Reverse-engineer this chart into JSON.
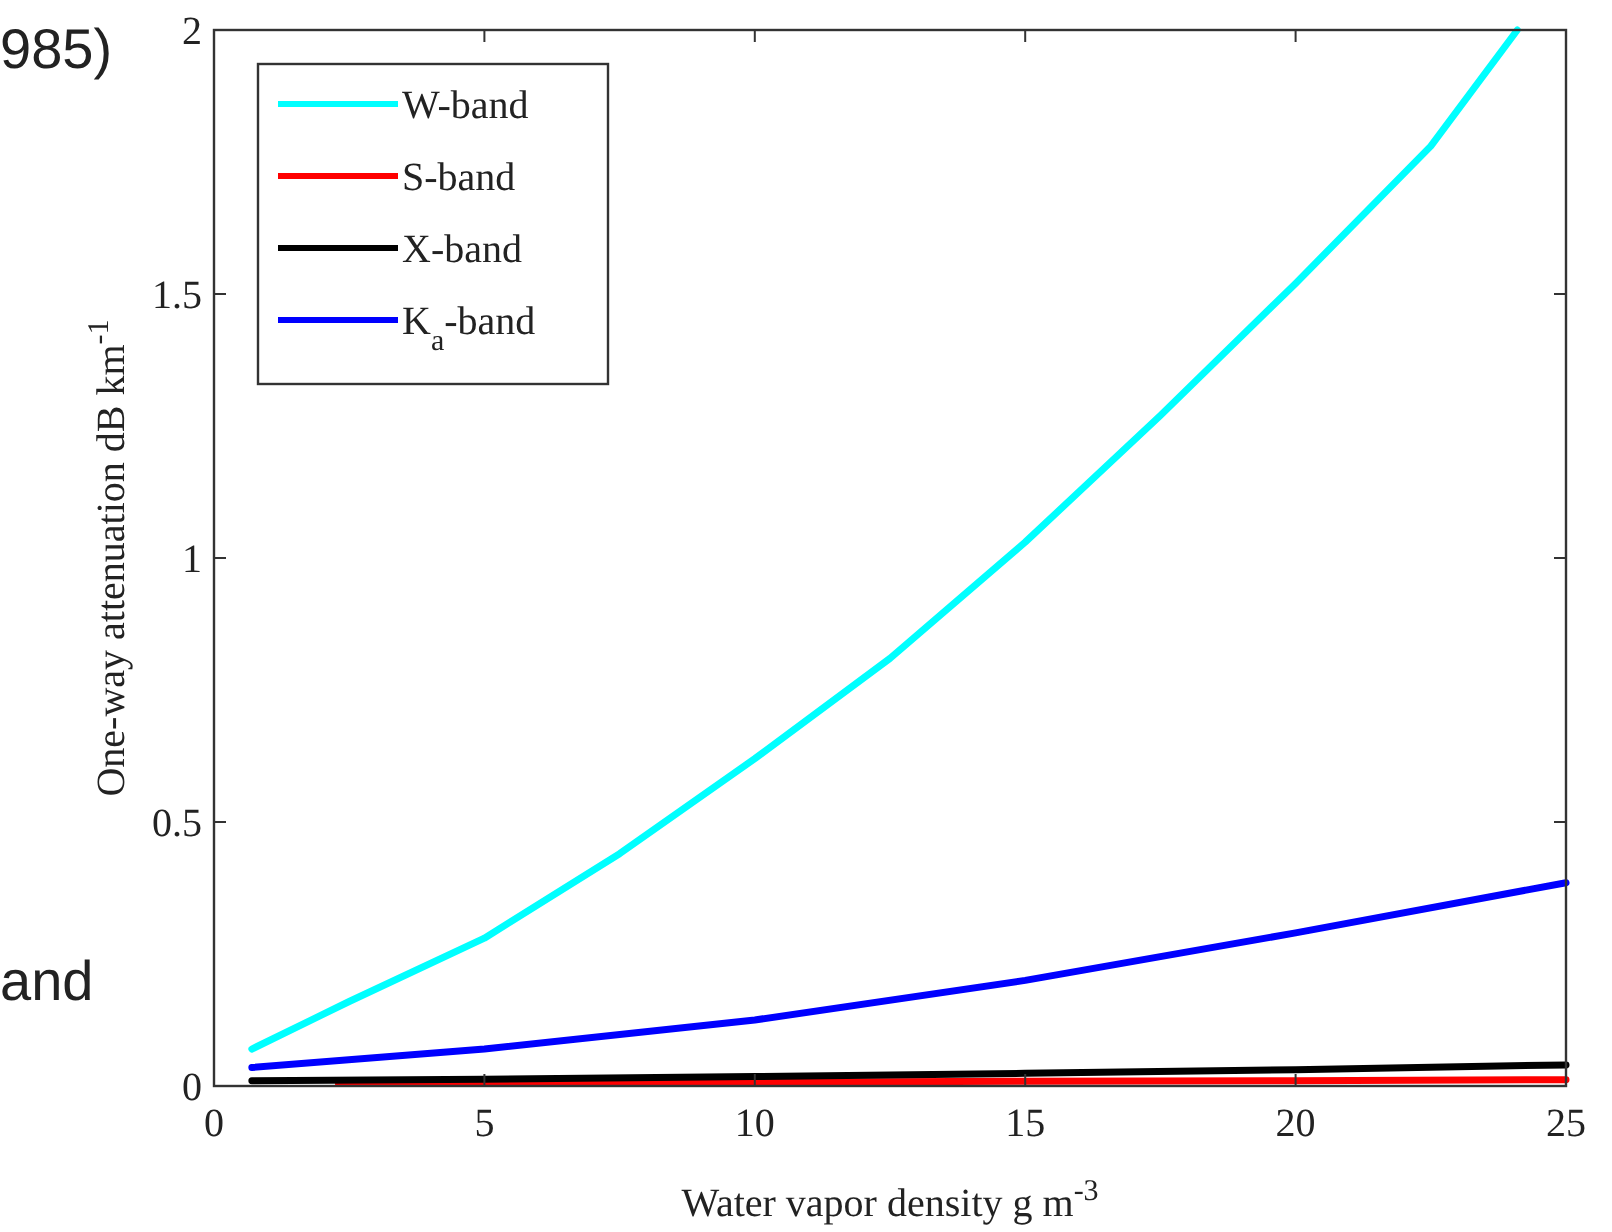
{
  "chart_data": {
    "type": "line",
    "xlabel": "Water vapor density g m$^{-3}$",
    "ylabel": "One-way attenuation dB km$^{-1}$",
    "xlim": [
      0,
      25
    ],
    "ylim": [
      0,
      2
    ],
    "xticks": [
      0,
      5,
      10,
      15,
      20,
      25
    ],
    "yticks": [
      0,
      0.5,
      1,
      1.5,
      2
    ],
    "grid": false,
    "legend": "top left",
    "line_style": "solid",
    "marker": "none",
    "annotations": [
      "985)",
      "and"
    ],
    "series": [
      {
        "name": "W-band",
        "color": "#00ffff",
        "x": [
          0.7,
          2.5,
          5,
          7.5,
          10,
          12.5,
          15,
          17.5,
          20,
          22.5,
          24.1
        ],
        "values": [
          0.07,
          0.16,
          0.28,
          0.44,
          0.62,
          0.81,
          1.03,
          1.27,
          1.52,
          1.78,
          2
        ]
      },
      {
        "name": "S-band",
        "color": "#ff0000",
        "x": [
          2.3,
          10,
          15,
          20,
          25
        ],
        "values": [
          0.005,
          0.007,
          0.009,
          0.01,
          0.012
        ]
      },
      {
        "name": "X-band",
        "color": "#000000",
        "x": [
          0.7,
          5,
          10,
          15,
          20,
          25
        ],
        "values": [
          0.01,
          0.013,
          0.018,
          0.024,
          0.031,
          0.04
        ]
      },
      {
        "name": "K$_{a}$-band",
        "color": "#0000ff",
        "x": [
          0.7,
          5,
          10,
          15,
          20,
          25
        ],
        "values": [
          0.035,
          0.07,
          0.125,
          0.2,
          0.29,
          0.385
        ]
      }
    ]
  }
}
